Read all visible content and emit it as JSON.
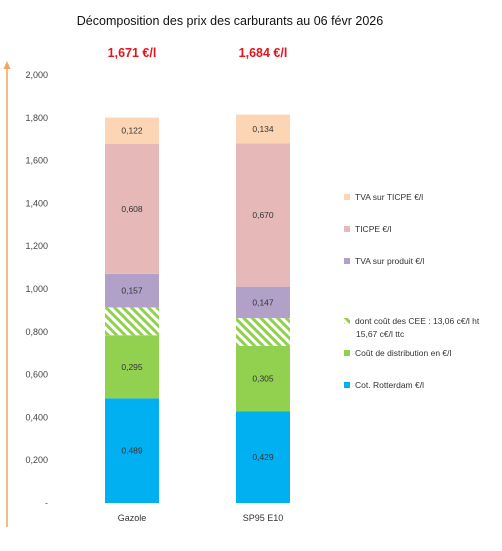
{
  "chart_data": {
    "type": "bar",
    "stacked": true,
    "title": "Décomposition des prix des carburants au 06 févr 2026",
    "categories": [
      "Gazole",
      "SP95 E10"
    ],
    "totals": [
      "1,671 €/l",
      "1,684 €/l"
    ],
    "ylim": [
      0,
      2.0
    ],
    "yticks": [
      "-",
      "0,200",
      "0,400",
      "0,600",
      "0,800",
      "1,000",
      "1,200",
      "1,400",
      "1,600",
      "1,800",
      "2,000"
    ],
    "grid": false,
    "legend_position": "right",
    "series": [
      {
        "name": "Cot. Rotterdam €/l",
        "values": [
          0.489,
          0.429
        ],
        "labels": [
          "0,489",
          "0,429"
        ],
        "color": "#00b0f0"
      },
      {
        "name": "Coût de distribution en €/l",
        "values": [
          0.295,
          0.305
        ],
        "labels": [
          "0,295",
          "0,305"
        ],
        "color": "#92d050"
      },
      {
        "name": "dont coût des CEE : 13,06 c€/l ht 15,67 c€/l ttc",
        "values": [
          0.13,
          0.13
        ],
        "labels": [
          "",
          ""
        ],
        "color": "#92d050",
        "pattern": "hatch"
      },
      {
        "name": "TVA sur produit €/l",
        "values": [
          0.157,
          0.147
        ],
        "labels": [
          "0,157",
          "0,147"
        ],
        "color": "#b1a0c7"
      },
      {
        "name": "TICPE €/l",
        "values": [
          0.608,
          0.67
        ],
        "labels": [
          "0,608",
          "0,670"
        ],
        "color": "#e6b9b8"
      },
      {
        "name": "TVA sur TICPE €/l",
        "values": [
          0.122,
          0.134
        ],
        "labels": [
          "0,122",
          "0,134"
        ],
        "color": "#fcd5b4"
      }
    ],
    "legend": [
      {
        "series": 5,
        "lines": [
          "TVA sur TICPE €/l"
        ]
      },
      {
        "series": 4,
        "lines": [
          "TICPE €/l"
        ]
      },
      {
        "series": 3,
        "lines": [
          "TVA sur produit €/l"
        ]
      },
      {
        "series": 2,
        "lines": [
          "dont coût des CEE : 13,06 c€/l ht",
          "15,67 c€/l ttc"
        ]
      },
      {
        "series": 1,
        "lines": [
          "Coût de distribution en €/l"
        ]
      },
      {
        "series": 0,
        "lines": [
          "Cot. Rotterdam €/l"
        ]
      }
    ]
  }
}
